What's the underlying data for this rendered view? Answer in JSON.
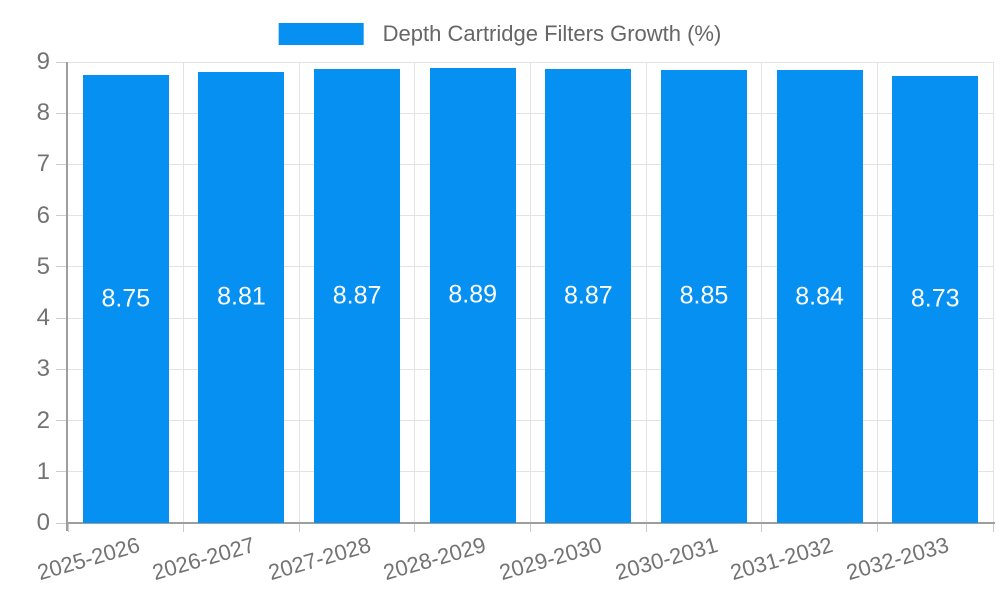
{
  "legend": {
    "label": "Depth Cartridge Filters Growth (%)"
  },
  "chart_data": {
    "type": "bar",
    "title": "Depth Cartridge Filters Growth (%)",
    "categories": [
      "2025-2026",
      "2026-2027",
      "2027-2028",
      "2028-2029",
      "2029-2030",
      "2030-2031",
      "2031-2032",
      "2032-2033"
    ],
    "values": [
      8.75,
      8.81,
      8.87,
      8.89,
      8.87,
      8.85,
      8.84,
      8.73
    ],
    "value_decimals": 2,
    "xlabel": "",
    "ylabel": "",
    "ylim": [
      0,
      9
    ],
    "ytick_step": 1,
    "grid": true,
    "legend_position": "top",
    "colors": {
      "bar": "#0590f2",
      "grid_line": "#e3e3e3",
      "axis_line": "#9e9e9e",
      "tick": "#cccccc",
      "axis_text": "#737373",
      "legend_text": "#666666",
      "value_label": "#ffffff",
      "background": "#ffffff"
    }
  }
}
